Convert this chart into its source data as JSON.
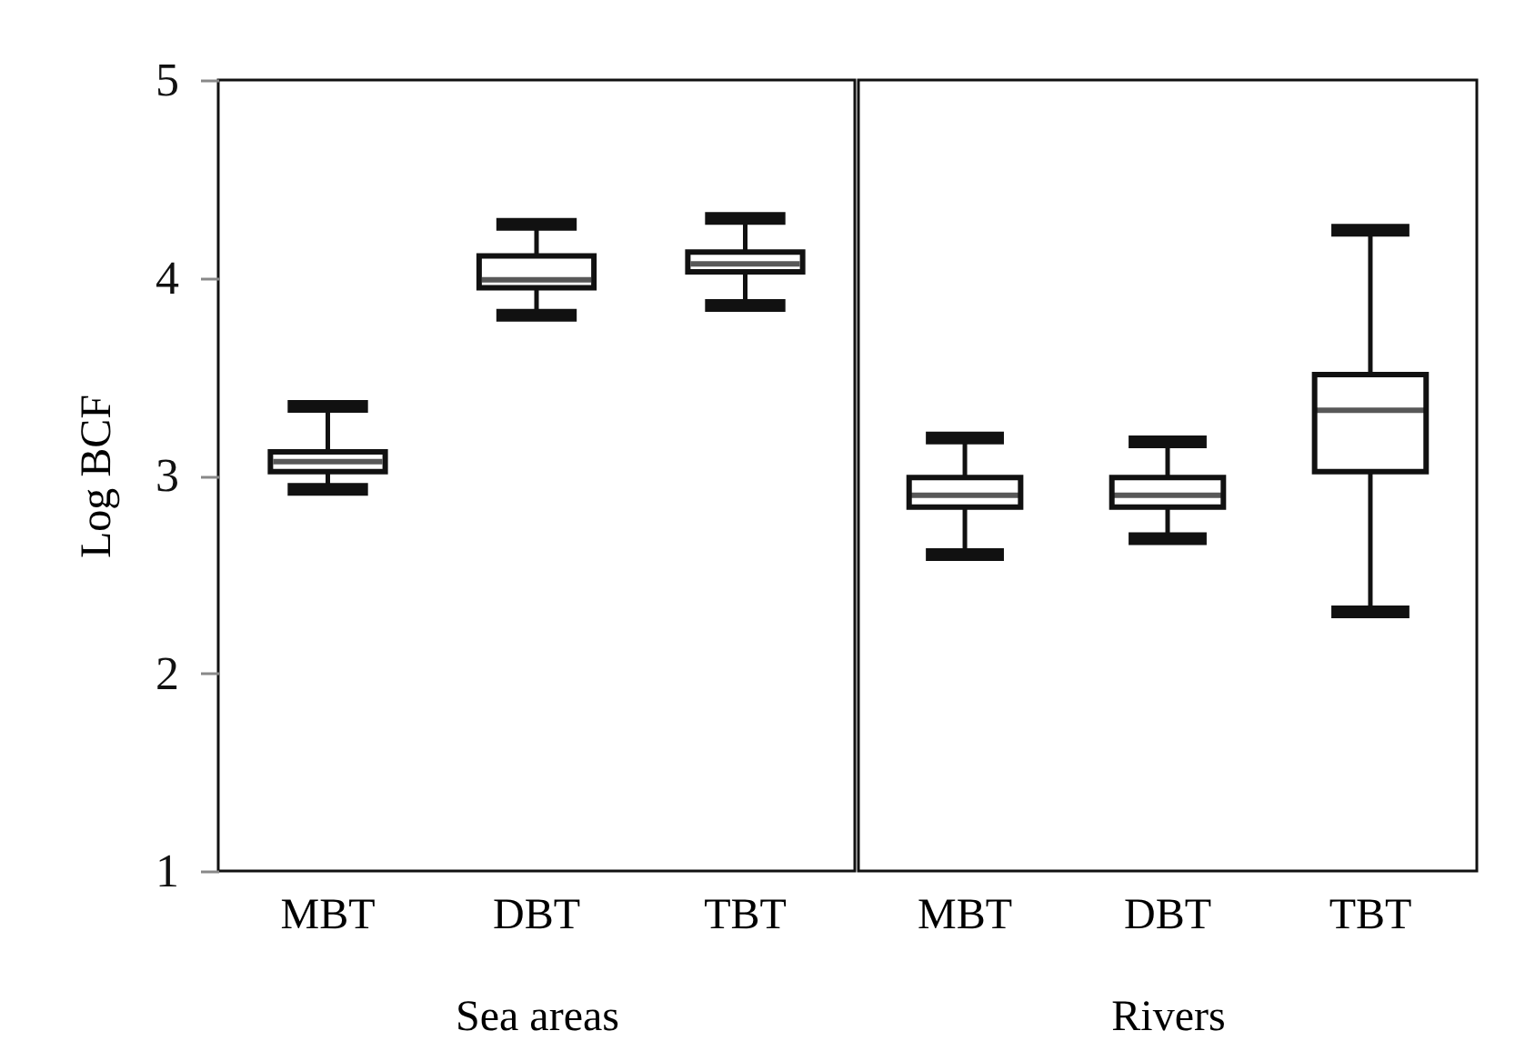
{
  "chart_data": [
    {
      "type": "box",
      "ylabel": "Log BCF",
      "xlabel": "Sea areas",
      "categories": [
        "MBT",
        "DBT",
        "TBT"
      ],
      "ylim": [
        1,
        5
      ],
      "yticks": [
        1,
        2,
        3,
        4,
        5
      ],
      "tick_labels": true,
      "boxes": [
        {
          "low": 2.93,
          "q1": 3.02,
          "median": 3.07,
          "q3": 3.12,
          "high": 3.35
        },
        {
          "low": 3.81,
          "q1": 3.95,
          "median": 3.99,
          "q3": 4.11,
          "high": 4.27
        },
        {
          "low": 3.86,
          "q1": 4.03,
          "median": 4.07,
          "q3": 4.13,
          "high": 4.3
        }
      ]
    },
    {
      "type": "box",
      "xlabel": "Rivers",
      "categories": [
        "MBT",
        "DBT",
        "TBT"
      ],
      "ylim": [
        1,
        5
      ],
      "yticks": [
        1,
        2,
        3,
        4,
        5
      ],
      "tick_labels": "x",
      "boxes": [
        {
          "low": 2.6,
          "q1": 2.84,
          "median": 2.9,
          "q3": 2.99,
          "high": 3.19
        },
        {
          "low": 2.68,
          "q1": 2.84,
          "median": 2.9,
          "q3": 2.99,
          "high": 3.17
        },
        {
          "low": 2.31,
          "q1": 3.02,
          "median": 3.33,
          "q3": 3.51,
          "high": 4.24
        }
      ]
    }
  ]
}
